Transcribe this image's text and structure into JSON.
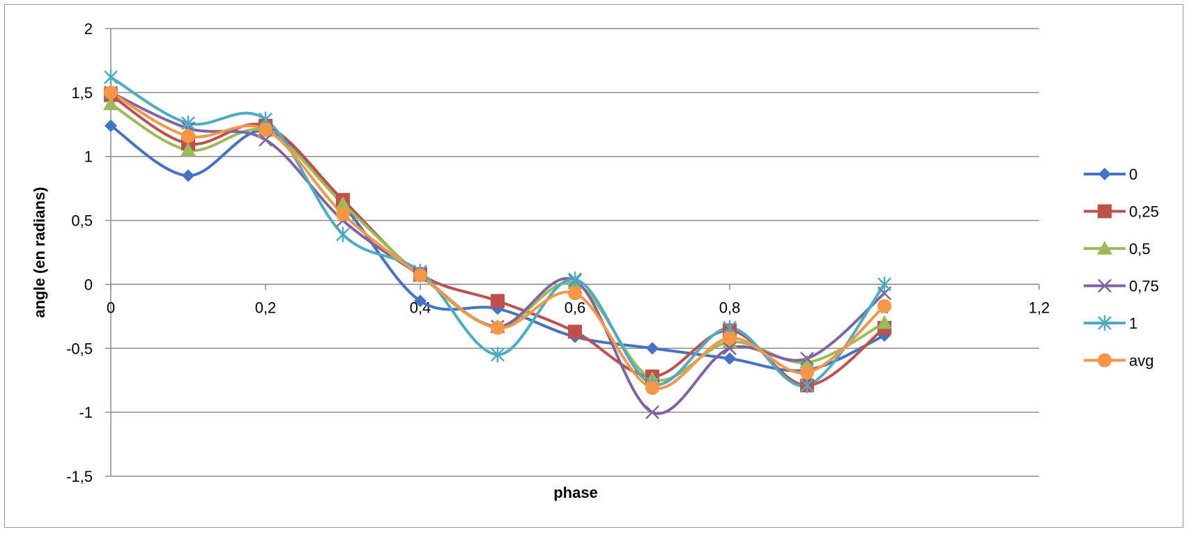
{
  "chart_data": {
    "type": "line",
    "smooth": true,
    "title": "",
    "xlabel": "phase",
    "ylabel": "angle (en radians)",
    "xlim": [
      0,
      1.2
    ],
    "ylim": [
      -1.5,
      2
    ],
    "xticks": [
      "0",
      "0,2",
      "0,4",
      "0,6",
      "0,8",
      "1",
      "1,2"
    ],
    "xtick_values": [
      0,
      0.2,
      0.4,
      0.6,
      0.8,
      1.0,
      1.2
    ],
    "yticks": [
      "2",
      "1,5",
      "1",
      "0,5",
      "0",
      "-0,5",
      "-1",
      "-1,5"
    ],
    "ytick_values": [
      2,
      1.5,
      1,
      0.5,
      0,
      -0.5,
      -1,
      -1.5
    ],
    "grid": "horizontal",
    "legend_position": "right",
    "x": [
      0,
      0.1,
      0.2,
      0.3,
      0.4,
      0.5,
      0.6,
      0.7,
      0.8,
      0.9,
      1.0
    ],
    "series": [
      {
        "name": "0",
        "color": "#4472C4",
        "marker": "diamond",
        "values": [
          1.24,
          0.85,
          1.2,
          0.62,
          -0.13,
          -0.19,
          -0.41,
          -0.5,
          -0.58,
          -0.67,
          -0.4
        ]
      },
      {
        "name": "0,25",
        "color": "#C0504D",
        "marker": "square",
        "values": [
          1.48,
          1.1,
          1.24,
          0.66,
          0.08,
          -0.13,
          -0.37,
          -0.72,
          -0.36,
          -0.79,
          -0.34
        ]
      },
      {
        "name": "0,5",
        "color": "#9BBB59",
        "marker": "triangle",
        "values": [
          1.41,
          1.05,
          1.2,
          0.63,
          0.07,
          -0.33,
          0.01,
          -0.74,
          -0.45,
          -0.61,
          -0.3
        ]
      },
      {
        "name": "0,75",
        "color": "#8064A2",
        "marker": "x",
        "values": [
          1.5,
          1.22,
          1.13,
          0.5,
          0.07,
          -0.33,
          0.03,
          -1.0,
          -0.5,
          -0.58,
          -0.07
        ]
      },
      {
        "name": "1",
        "color": "#4BACC6",
        "marker": "star",
        "values": [
          1.62,
          1.26,
          1.29,
          0.39,
          0.1,
          -0.55,
          0.04,
          -0.78,
          -0.34,
          -0.79,
          0.0
        ]
      },
      {
        "name": "avg",
        "color": "#F79646",
        "marker": "circle",
        "values": [
          1.5,
          1.16,
          1.21,
          0.55,
          0.07,
          -0.34,
          -0.07,
          -0.81,
          -0.42,
          -0.69,
          -0.17
        ]
      }
    ]
  }
}
